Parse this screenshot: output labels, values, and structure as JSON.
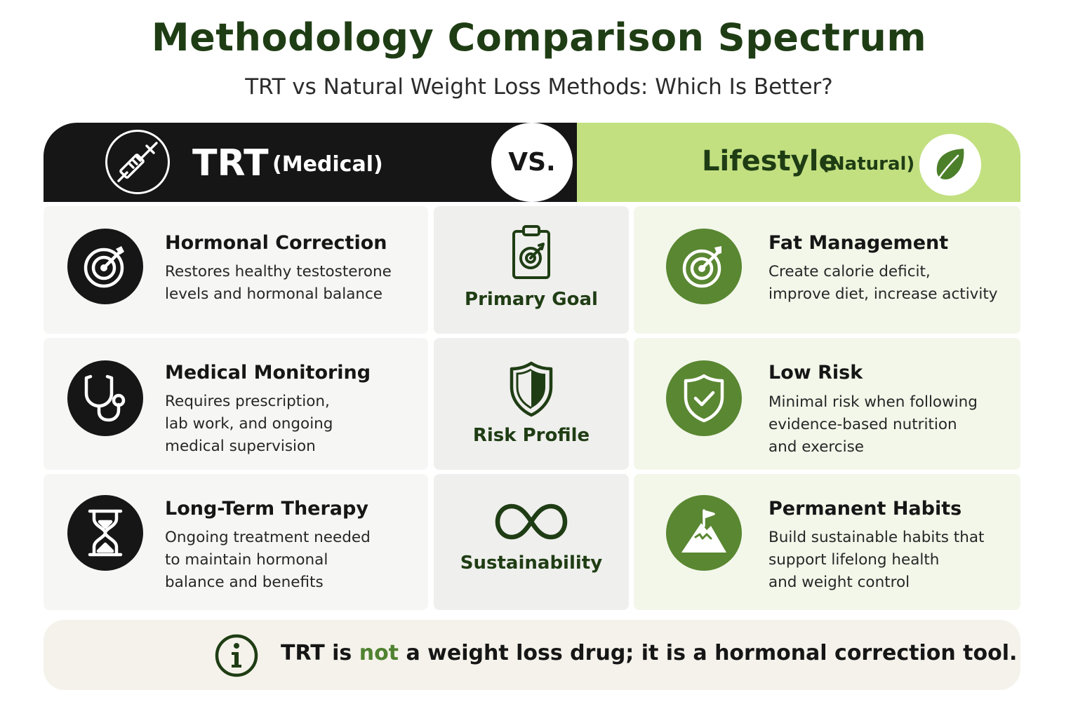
{
  "title": "Methodology Comparison Spectrum",
  "subtitle": "TRT vs Natural Weight Loss Methods: Which Is Better?",
  "header": {
    "left_main": "TRT",
    "left_sub": "(Medical)",
    "vs": "VS.",
    "right_main": "Lifestyle",
    "right_sub": "(Natural)"
  },
  "rows": [
    {
      "criterion": "Primary Goal",
      "criterion_icon": "clipboard-target-icon",
      "left": {
        "icon": "target-icon",
        "title": "Hormonal Correction",
        "lines": [
          "Restores healthy testosterone",
          "levels and hormonal balance"
        ]
      },
      "right": {
        "icon": "target-arrow-icon",
        "title": "Fat Management",
        "lines": [
          "Create calorie deficit,",
          "improve diet, increase activity"
        ]
      }
    },
    {
      "criterion": "Risk Profile",
      "criterion_icon": "shield-icon",
      "left": {
        "icon": "stethoscope-icon",
        "title": "Medical Monitoring",
        "lines": [
          "Requires prescription,",
          "lab work, and ongoing",
          "medical supervision"
        ]
      },
      "right": {
        "icon": "shield-check-icon",
        "title": "Low Risk",
        "lines": [
          "Minimal risk when following",
          "evidence-based nutrition",
          "and exercise"
        ]
      }
    },
    {
      "criterion": "Sustainability",
      "criterion_icon": "infinity-icon",
      "left": {
        "icon": "hourglass-icon",
        "title": "Long-Term Therapy",
        "lines": [
          "Ongoing treatment needed",
          "to maintain hormonal",
          "balance and benefits"
        ]
      },
      "right": {
        "icon": "mountain-flag-icon",
        "title": "Permanent Habits",
        "lines": [
          "Build sustainable habits that",
          "support lifelong health",
          "and weight control"
        ]
      }
    }
  ],
  "footer": {
    "before": "TRT is",
    "highlight": "not",
    "after": "a weight loss drug; it is a hormonal correction tool."
  },
  "colors": {
    "dark": "#161616",
    "green_dark": "#1f3d14",
    "green_icon": "#5a8732",
    "green_light": "#c2e080",
    "highlight": "#4f8230"
  }
}
